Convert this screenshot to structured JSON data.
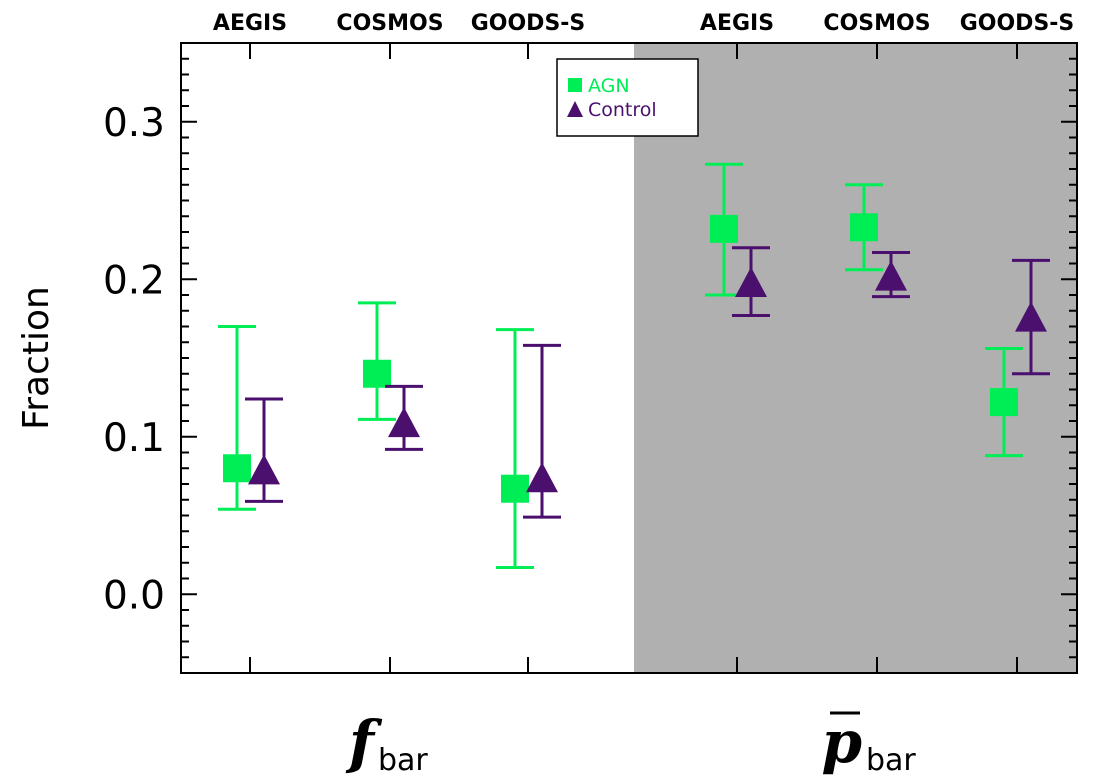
{
  "chart_data": {
    "type": "scatter",
    "ylabel": "Fraction",
    "ylim": [
      -0.05,
      0.35
    ],
    "yticks": [
      "0.0",
      "0.1",
      "0.2",
      "0.3"
    ],
    "groups": [
      {
        "symbol": "f",
        "subscript": "bar",
        "overline": false,
        "shaded": false,
        "categories": [
          "AEGIS",
          "COSMOS",
          "GOODS-S"
        ]
      },
      {
        "symbol": "p",
        "subscript": "bar",
        "overline": true,
        "shaded": true,
        "categories": [
          "AEGIS",
          "COSMOS",
          "GOODS-S"
        ]
      }
    ],
    "series": [
      {
        "name": "AGN",
        "marker": "square",
        "color": "#00ee55",
        "points": [
          {
            "group": 0,
            "category": "AEGIS",
            "y": 0.08,
            "lo": 0.054,
            "hi": 0.17
          },
          {
            "group": 0,
            "category": "COSMOS",
            "y": 0.14,
            "lo": 0.111,
            "hi": 0.185
          },
          {
            "group": 0,
            "category": "GOODS-S",
            "y": 0.067,
            "lo": 0.017,
            "hi": 0.168
          },
          {
            "group": 1,
            "category": "AEGIS",
            "y": 0.232,
            "lo": 0.19,
            "hi": 0.273
          },
          {
            "group": 1,
            "category": "COSMOS",
            "y": 0.233,
            "lo": 0.206,
            "hi": 0.26
          },
          {
            "group": 1,
            "category": "GOODS-S",
            "y": 0.122,
            "lo": 0.088,
            "hi": 0.156
          }
        ]
      },
      {
        "name": "Control",
        "marker": "triangle",
        "color": "#4b0f6e",
        "points": [
          {
            "group": 0,
            "category": "AEGIS",
            "y": 0.078,
            "lo": 0.059,
            "hi": 0.124
          },
          {
            "group": 0,
            "category": "COSMOS",
            "y": 0.108,
            "lo": 0.092,
            "hi": 0.132
          },
          {
            "group": 0,
            "category": "GOODS-S",
            "y": 0.073,
            "lo": 0.049,
            "hi": 0.158
          },
          {
            "group": 1,
            "category": "AEGIS",
            "y": 0.197,
            "lo": 0.177,
            "hi": 0.22
          },
          {
            "group": 1,
            "category": "COSMOS",
            "y": 0.201,
            "lo": 0.189,
            "hi": 0.217
          },
          {
            "group": 1,
            "category": "GOODS-S",
            "y": 0.175,
            "lo": 0.14,
            "hi": 0.212
          }
        ]
      }
    ],
    "legend": {
      "position": "top-center"
    },
    "colors": {
      "shade": "#b0b0b0",
      "axis": "#000000"
    }
  }
}
